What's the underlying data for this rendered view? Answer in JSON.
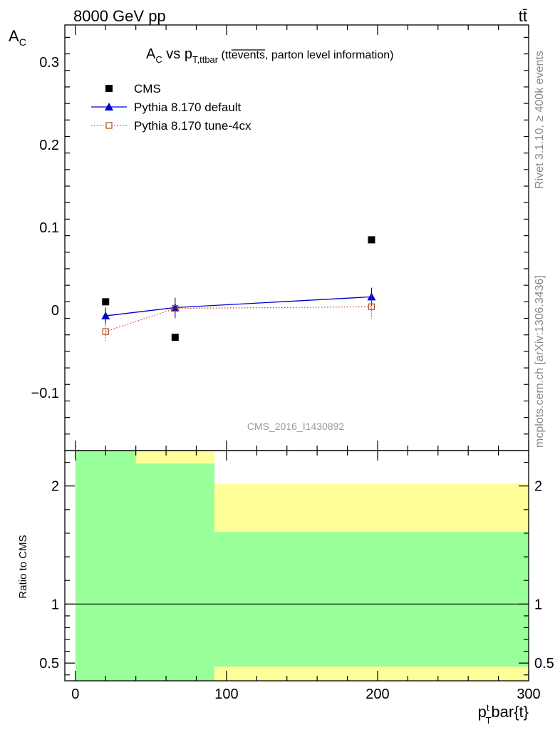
{
  "chart_data": {
    "type": "scatter",
    "header": {
      "energy": "8000 GeV pp",
      "process": "tt̄"
    },
    "title": {
      "prefix": "A",
      "prefix_sub": "C",
      "vs": " vs p",
      "vs_sub": "T,ttbar",
      "paren_open": " (tt",
      "paren_over": "events",
      "paren_close": ", parton level information)"
    },
    "ylabel": {
      "main": "A",
      "sub": "C"
    },
    "xlabel": {
      "main": "p",
      "sub": "T",
      "sup": "t",
      "rest": "bar{t}"
    },
    "ratio_ylabel": "Ratio to CMS",
    "side_text_top": "Rivet 3.1.10, ≥ 400k events",
    "side_text_bottom": "mcplots.cern.ch [arXiv:1306.3436]",
    "analysis_label": "CMS_2016_I1430892",
    "xlim": [
      -7,
      300
    ],
    "ylim": [
      -0.17,
      0.345
    ],
    "ratio_ylim": [
      0.35,
      2.3
    ],
    "x_ticks": [
      0,
      100,
      200,
      300
    ],
    "x_tick_labels": [
      "0",
      "100",
      "200",
      "300"
    ],
    "y_ticks": [
      -0.1,
      0,
      0.1,
      0.2,
      0.3
    ],
    "y_tick_labels": [
      "−0.1",
      "0",
      "0.1",
      "0.2",
      "0.3"
    ],
    "ratio_ticks": [
      0.5,
      1,
      2
    ],
    "ratio_tick_labels": [
      "0.5",
      "1",
      "2"
    ],
    "legend_position": "top-left",
    "series": [
      {
        "name": "CMS",
        "marker": "square",
        "color": "#000000",
        "x": [
          20,
          66,
          196
        ],
        "y": [
          0.01,
          -0.033,
          0.085
        ]
      },
      {
        "name": "Pythia 8.170 default",
        "marker": "triangle",
        "color": "#0000cc",
        "line": "solid",
        "x": [
          20,
          66,
          196
        ],
        "y": [
          -0.007,
          0.003,
          0.016
        ],
        "yerr": [
          0.01,
          0.012,
          0.011
        ]
      },
      {
        "name": "Pythia 8.170 tune-4cx",
        "marker": "open-square",
        "color": "#b5532a",
        "line": "dotted",
        "x": [
          20,
          66,
          196
        ],
        "y": [
          -0.026,
          0.002,
          0.004
        ],
        "yerr": [
          0.011,
          0.013,
          0.014
        ]
      }
    ],
    "ratio_bands": [
      {
        "x0": 0,
        "x1": 92,
        "yellow": [
          0.35,
          2.3
        ],
        "green": [
          0.35,
          2.3
        ]
      },
      {
        "x0": 92,
        "x1": 300,
        "yellow": [
          0.35,
          2.02
        ],
        "green": [
          0.47,
          1.61
        ]
      }
    ],
    "band_colors": {
      "yellow": "#ffff99",
      "green": "#99ff99"
    },
    "ratio_reference": 1
  }
}
